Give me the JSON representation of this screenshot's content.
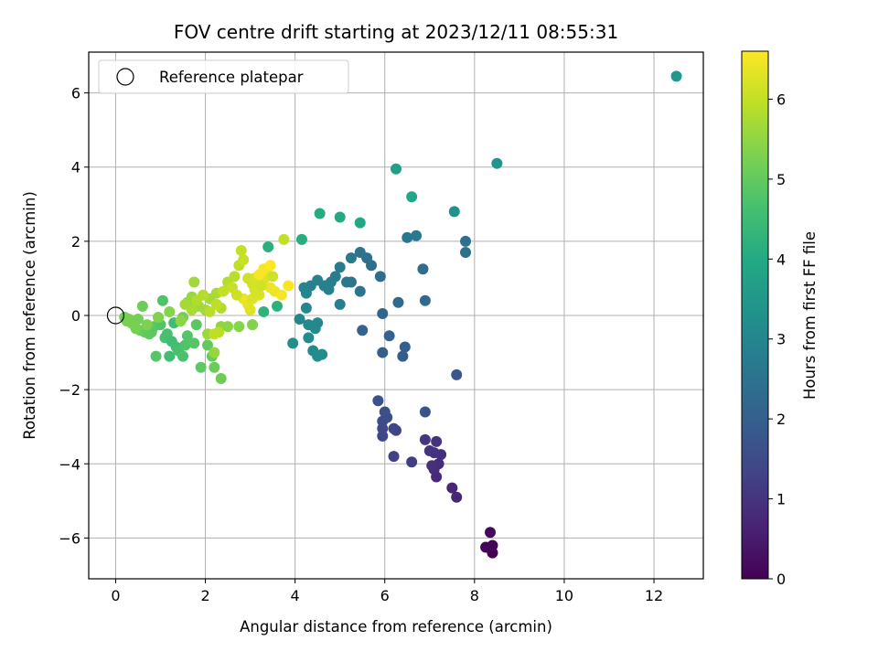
{
  "chart_data": {
    "type": "scatter",
    "title": "FOV centre drift starting at 2023/12/11 08:55:31",
    "xlabel": "Angular distance from reference (arcmin)",
    "ylabel": "Rotation from reference (arcmin)",
    "xlim": [
      -0.6,
      13.1
    ],
    "ylim": [
      -7.1,
      7.1
    ],
    "xticks": [
      "0",
      "2",
      "4",
      "6",
      "8",
      "10",
      "12"
    ],
    "yticks": [
      "−6",
      "−4",
      "−2",
      "0",
      "2",
      "4",
      "6"
    ],
    "grid": true,
    "legend": {
      "placement": "top-left",
      "entries": [
        "Reference platepar"
      ]
    },
    "reference_point": {
      "x": 0,
      "y": 0,
      "marker": "open-circle"
    },
    "colorbar": {
      "label": "Hours from first FF file",
      "range": [
        0,
        6.6
      ],
      "ticks": [
        "0",
        "1",
        "2",
        "3",
        "4",
        "5",
        "6"
      ],
      "colormap": "viridis"
    },
    "points": [
      [
        8.4,
        -6.4,
        0.0
      ],
      [
        8.25,
        -6.25,
        0.05
      ],
      [
        8.4,
        -6.2,
        0.1
      ],
      [
        8.35,
        -5.85,
        0.15
      ],
      [
        7.6,
        -4.9,
        0.7
      ],
      [
        7.5,
        -4.65,
        0.75
      ],
      [
        7.15,
        -4.35,
        0.8
      ],
      [
        7.1,
        -4.15,
        0.85
      ],
      [
        7.2,
        -4.0,
        0.85
      ],
      [
        7.05,
        -4.05,
        0.9
      ],
      [
        7.25,
        -3.75,
        0.9
      ],
      [
        7.1,
        -3.7,
        0.95
      ],
      [
        7.0,
        -3.65,
        1.0
      ],
      [
        7.15,
        -3.4,
        1.0
      ],
      [
        6.9,
        -3.35,
        1.05
      ],
      [
        6.6,
        -3.95,
        1.2
      ],
      [
        6.2,
        -3.8,
        1.25
      ],
      [
        6.25,
        -3.1,
        1.3
      ],
      [
        6.2,
        -3.05,
        1.35
      ],
      [
        5.95,
        -3.25,
        1.4
      ],
      [
        5.95,
        -3.05,
        1.45
      ],
      [
        5.95,
        -2.85,
        1.5
      ],
      [
        6.05,
        -2.75,
        1.55
      ],
      [
        6.0,
        -2.6,
        1.6
      ],
      [
        5.85,
        -2.3,
        1.65
      ],
      [
        6.9,
        -2.6,
        1.7
      ],
      [
        7.6,
        -1.6,
        1.75
      ],
      [
        6.4,
        -1.1,
        1.9
      ],
      [
        5.95,
        -1.0,
        1.95
      ],
      [
        6.45,
        -0.85,
        2.0
      ],
      [
        6.1,
        -0.55,
        2.05
      ],
      [
        5.5,
        -0.4,
        2.1
      ],
      [
        5.95,
        0.05,
        2.15
      ],
      [
        6.3,
        0.35,
        2.25
      ],
      [
        6.9,
        0.4,
        2.3
      ],
      [
        5.9,
        1.05,
        2.35
      ],
      [
        5.7,
        1.35,
        2.4
      ],
      [
        5.6,
        1.55,
        2.45
      ],
      [
        5.45,
        1.7,
        2.5
      ],
      [
        5.45,
        0.65,
        2.55
      ],
      [
        5.25,
        0.9,
        2.6
      ],
      [
        5.15,
        0.9,
        2.62
      ],
      [
        5.25,
        1.55,
        2.65
      ],
      [
        5.0,
        1.3,
        2.7
      ],
      [
        4.9,
        1.05,
        2.75
      ],
      [
        5.0,
        0.3,
        2.78
      ],
      [
        4.8,
        0.9,
        2.8
      ],
      [
        4.75,
        0.7,
        2.82
      ],
      [
        4.65,
        0.8,
        2.85
      ],
      [
        4.5,
        0.95,
        2.9
      ],
      [
        4.35,
        0.8,
        2.92
      ],
      [
        4.2,
        0.75,
        2.95
      ],
      [
        4.25,
        0.6,
        2.98
      ],
      [
        4.25,
        0.2,
        3.0
      ],
      [
        4.1,
        -0.1,
        3.02
      ],
      [
        4.3,
        -0.25,
        3.05
      ],
      [
        4.45,
        -0.35,
        3.08
      ],
      [
        4.5,
        -0.2,
        3.1
      ],
      [
        4.3,
        -0.6,
        3.12
      ],
      [
        4.4,
        -0.95,
        3.15
      ],
      [
        4.5,
        -1.1,
        3.18
      ],
      [
        4.6,
        -1.05,
        3.2
      ],
      [
        3.95,
        -0.75,
        3.25
      ],
      [
        6.85,
        1.25,
        2.35
      ],
      [
        7.8,
        2.0,
        2.4
      ],
      [
        7.8,
        1.7,
        2.45
      ],
      [
        6.5,
        2.1,
        2.6
      ],
      [
        6.7,
        2.15,
        2.65
      ],
      [
        7.55,
        2.8,
        3.3
      ],
      [
        8.5,
        4.1,
        3.4
      ],
      [
        12.5,
        6.45,
        3.5
      ],
      [
        6.25,
        3.95,
        3.7
      ],
      [
        6.6,
        3.2,
        3.9
      ],
      [
        5.45,
        2.5,
        3.95
      ],
      [
        5.0,
        2.65,
        4.0
      ],
      [
        4.55,
        2.75,
        4.05
      ],
      [
        4.15,
        2.05,
        4.1
      ],
      [
        3.4,
        1.85,
        4.15
      ],
      [
        3.6,
        0.25,
        4.2
      ],
      [
        3.3,
        0.1,
        4.25
      ],
      [
        0.3,
        -0.1,
        5.3
      ],
      [
        0.35,
        -0.2,
        5.25
      ],
      [
        0.5,
        -0.1,
        5.2
      ],
      [
        0.55,
        -0.4,
        5.15
      ],
      [
        0.6,
        0.25,
        5.1
      ],
      [
        0.65,
        -0.45,
        5.05
      ],
      [
        0.75,
        -0.5,
        5.0
      ],
      [
        0.8,
        -0.45,
        4.95
      ],
      [
        0.85,
        -0.3,
        4.9
      ],
      [
        0.9,
        -1.1,
        4.85
      ],
      [
        1.0,
        -0.25,
        4.8
      ],
      [
        1.05,
        0.4,
        4.75
      ],
      [
        1.1,
        -0.6,
        4.7
      ],
      [
        1.15,
        -0.5,
        4.65
      ],
      [
        1.2,
        -1.1,
        4.6
      ],
      [
        1.25,
        -0.7,
        4.55
      ],
      [
        1.3,
        -0.2,
        4.5
      ],
      [
        1.35,
        -0.85,
        4.6
      ],
      [
        1.4,
        -0.95,
        4.65
      ],
      [
        1.5,
        -1.1,
        4.7
      ],
      [
        1.55,
        -0.8,
        4.75
      ],
      [
        1.6,
        -0.55,
        4.8
      ],
      [
        1.75,
        -0.75,
        4.85
      ],
      [
        1.8,
        -0.25,
        4.9
      ],
      [
        1.9,
        -1.4,
        4.95
      ],
      [
        2.05,
        -0.8,
        5.0
      ],
      [
        2.15,
        -1.1,
        5.05
      ],
      [
        2.2,
        -1.4,
        5.1
      ],
      [
        2.35,
        -1.7,
        5.15
      ],
      [
        1.5,
        -0.05,
        5.2
      ],
      [
        0.45,
        -0.35,
        5.25
      ],
      [
        0.7,
        -0.25,
        5.3
      ],
      [
        0.95,
        -0.05,
        5.35
      ],
      [
        1.2,
        0.1,
        5.4
      ],
      [
        1.45,
        -0.15,
        5.45
      ],
      [
        1.6,
        0.35,
        5.5
      ],
      [
        1.7,
        0.5,
        5.55
      ],
      [
        1.85,
        0.25,
        5.6
      ],
      [
        2.0,
        0.15,
        5.65
      ],
      [
        2.1,
        0.45,
        5.7
      ],
      [
        2.25,
        0.6,
        5.75
      ],
      [
        2.35,
        0.2,
        5.8
      ],
      [
        2.5,
        0.9,
        5.85
      ],
      [
        2.65,
        1.05,
        5.9
      ],
      [
        2.75,
        1.35,
        5.95
      ],
      [
        2.8,
        1.75,
        6.0
      ],
      [
        2.85,
        1.5,
        6.05
      ],
      [
        2.95,
        1.0,
        6.1
      ],
      [
        3.05,
        0.85,
        6.15
      ],
      [
        3.1,
        0.7,
        6.2
      ],
      [
        3.2,
        0.55,
        6.25
      ],
      [
        3.3,
        0.95,
        6.3
      ],
      [
        3.35,
        1.2,
        6.35
      ],
      [
        3.45,
        0.75,
        6.4
      ],
      [
        3.55,
        0.65,
        6.45
      ],
      [
        3.7,
        0.55,
        6.5
      ],
      [
        3.85,
        0.8,
        6.55
      ],
      [
        2.85,
        0.45,
        6.4
      ],
      [
        2.95,
        0.3,
        6.35
      ],
      [
        3.0,
        0.15,
        6.3
      ],
      [
        3.05,
        0.45,
        6.25
      ],
      [
        3.15,
        0.6,
        6.2
      ],
      [
        3.25,
        0.8,
        6.15
      ],
      [
        2.7,
        0.55,
        6.1
      ],
      [
        2.6,
        0.75,
        6.05
      ],
      [
        2.4,
        0.65,
        6.0
      ],
      [
        2.25,
        0.3,
        5.95
      ],
      [
        2.1,
        0.1,
        5.9
      ],
      [
        1.95,
        0.55,
        5.85
      ],
      [
        1.8,
        0.4,
        5.8
      ],
      [
        1.7,
        0.15,
        5.75
      ],
      [
        1.55,
        0.3,
        5.7
      ],
      [
        1.75,
        0.9,
        5.65
      ],
      [
        2.05,
        -0.5,
        5.6
      ],
      [
        2.2,
        -1.0,
        5.55
      ],
      [
        2.35,
        -0.3,
        5.5
      ],
      [
        2.5,
        -0.3,
        5.45
      ],
      [
        2.75,
        -0.3,
        5.4
      ],
      [
        3.05,
        -0.25,
        5.35
      ],
      [
        2.3,
        -0.45,
        5.9
      ],
      [
        2.2,
        -0.5,
        5.95
      ],
      [
        3.75,
        2.05,
        6.0
      ],
      [
        3.5,
        1.05,
        6.1
      ],
      [
        3.1,
        1.0,
        6.2
      ],
      [
        3.3,
        1.25,
        6.5
      ],
      [
        3.2,
        1.1,
        6.55
      ],
      [
        3.45,
        1.35,
        6.6
      ],
      [
        0.2,
        -0.05,
        5.2
      ],
      [
        0.25,
        -0.15,
        5.25
      ]
    ]
  }
}
